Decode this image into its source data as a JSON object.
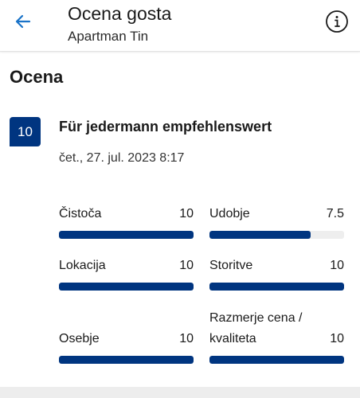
{
  "header": {
    "title": "Ocena gosta",
    "subtitle": "Apartman Tin",
    "back_icon": "arrow-left-icon",
    "info_icon": "info-icon"
  },
  "section_title": "Ocena",
  "review": {
    "score": "10",
    "headline": "Für jedermann empfehlenswert",
    "date": "čet., 27. jul. 2023 8:17"
  },
  "categories": [
    {
      "name": "Čistoča",
      "score": "10",
      "fraction": 1.0
    },
    {
      "name": "Udobje",
      "score": "7.5",
      "fraction": 0.75
    },
    {
      "name": "Lokacija",
      "score": "10",
      "fraction": 1.0
    },
    {
      "name": "Storitve",
      "score": "10",
      "fraction": 1.0
    },
    {
      "name": "Osebje",
      "score": "10",
      "fraction": 1.0
    },
    {
      "name": "Razmerje cena / kvaliteta",
      "score": "10",
      "fraction": 1.0
    }
  ],
  "colors": {
    "accent": "#003580",
    "back_arrow": "#1a73c8",
    "track": "#eeeeee"
  }
}
